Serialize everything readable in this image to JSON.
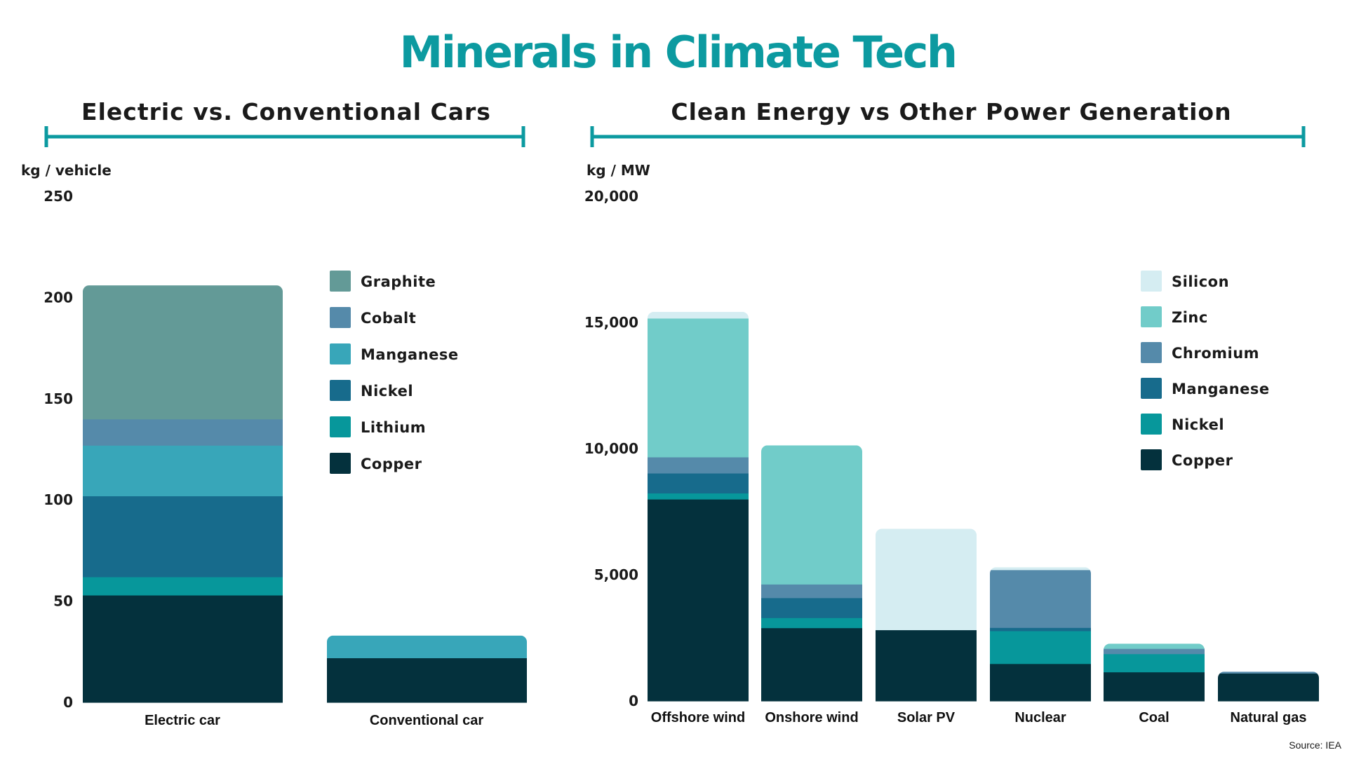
{
  "title": "Minerals in Climate Tech",
  "source": "Source: IEA",
  "chart_data": [
    {
      "type": "bar",
      "stacked": true,
      "title": "Electric vs. Conventional Cars",
      "ylabel": "kg / vehicle",
      "ylim": [
        0,
        250
      ],
      "yticks": [
        0,
        50,
        100,
        150,
        200,
        250
      ],
      "categories": [
        "Electric car",
        "Conventional car"
      ],
      "series": [
        {
          "name": "Copper",
          "values": [
            53,
            22
          ],
          "color": "#04313d"
        },
        {
          "name": "Lithium",
          "values": [
            9,
            0
          ],
          "color": "#07979b"
        },
        {
          "name": "Nickel",
          "values": [
            40,
            0
          ],
          "color": "#176b8c"
        },
        {
          "name": "Manganese",
          "values": [
            25,
            11
          ],
          "color": "#38a6b9"
        },
        {
          "name": "Cobalt",
          "values": [
            13,
            0
          ],
          "color": "#558aaa"
        },
        {
          "name": "Graphite",
          "values": [
            66,
            0
          ],
          "color": "#639a97"
        }
      ],
      "legend_position": "right"
    },
    {
      "type": "bar",
      "stacked": true,
      "title": "Clean Energy vs Other Power Generation",
      "ylabel": "kg / MW",
      "ylim": [
        0,
        20000
      ],
      "yticks": [
        0,
        5000,
        10000,
        15000,
        20000
      ],
      "ytick_labels": [
        "0",
        "5,000",
        "10,000",
        "15,000",
        "20,000"
      ],
      "categories": [
        "Offshore wind",
        "Onshore wind",
        "Solar PV",
        "Nuclear",
        "Coal",
        "Natural gas"
      ],
      "series": [
        {
          "name": "Copper",
          "values": [
            8000,
            2900,
            2820,
            1480,
            1150,
            1100
          ],
          "color": "#04313d"
        },
        {
          "name": "Nickel",
          "values": [
            240,
            400,
            0,
            1300,
            720,
            0
          ],
          "color": "#07979b"
        },
        {
          "name": "Manganese",
          "values": [
            790,
            790,
            0,
            130,
            0,
            0
          ],
          "color": "#176b8c"
        },
        {
          "name": "Chromium",
          "values": [
            640,
            540,
            0,
            2290,
            210,
            60
          ],
          "color": "#558aaa"
        },
        {
          "name": "Zinc",
          "values": [
            5500,
            5500,
            0,
            0,
            190,
            0
          ],
          "color": "#71ccc9"
        },
        {
          "name": "Silicon",
          "values": [
            250,
            0,
            4000,
            100,
            0,
            0
          ],
          "color": "#d5edf2"
        }
      ],
      "legend_position": "right"
    }
  ]
}
